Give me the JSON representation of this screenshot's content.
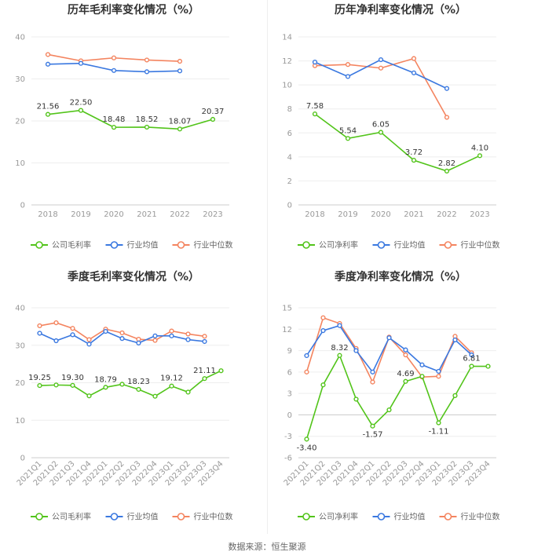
{
  "source": "数据来源：恒生聚源",
  "colors": {
    "company": "#52c41a",
    "industry_avg": "#3a78e0",
    "industry_median": "#f4845f"
  },
  "chart_data": [
    {
      "id": "annual_gross",
      "type": "line",
      "title": "历年毛利率变化情况（%）",
      "categories": [
        "2018",
        "2019",
        "2020",
        "2021",
        "2022",
        "2023"
      ],
      "ylim": [
        0,
        40
      ],
      "yticks": [
        0,
        10,
        20,
        30,
        40
      ],
      "grid": true,
      "legend_position": "bottom",
      "series": [
        {
          "name": "公司毛利率",
          "key": "company",
          "values": [
            21.56,
            22.5,
            18.48,
            18.52,
            18.07,
            20.37
          ],
          "labels": [
            "21.56",
            "22.50",
            "18.48",
            "18.52",
            "18.07",
            "20.37"
          ]
        },
        {
          "name": "行业均值",
          "key": "industry_avg",
          "values": [
            33.5,
            33.7,
            32.0,
            31.7,
            31.9,
            null
          ]
        },
        {
          "name": "行业中位数",
          "key": "industry_median",
          "values": [
            35.8,
            34.3,
            35.0,
            34.5,
            34.2,
            null
          ]
        }
      ]
    },
    {
      "id": "annual_net",
      "type": "line",
      "title": "历年净利率变化情况（%）",
      "categories": [
        "2018",
        "2019",
        "2020",
        "2021",
        "2022",
        "2023"
      ],
      "ylim": [
        0,
        14
      ],
      "yticks": [
        0,
        2,
        4,
        6,
        8,
        10,
        12,
        14
      ],
      "grid": true,
      "legend_position": "bottom",
      "series": [
        {
          "name": "公司净利率",
          "key": "company",
          "values": [
            7.58,
            5.54,
            6.05,
            3.72,
            2.82,
            4.1
          ],
          "labels": [
            "7.58",
            "5.54",
            "6.05",
            "3.72",
            "2.82",
            "4.10"
          ]
        },
        {
          "name": "行业均值",
          "key": "industry_avg",
          "values": [
            11.9,
            10.7,
            12.1,
            11.0,
            9.7,
            null
          ]
        },
        {
          "name": "行业中位数",
          "key": "industry_median",
          "values": [
            11.6,
            11.7,
            11.4,
            12.2,
            7.3,
            null
          ]
        }
      ]
    },
    {
      "id": "quarterly_gross",
      "type": "line",
      "title": "季度毛利率变化情况（%）",
      "categories": [
        "2021Q1",
        "2021Q2",
        "2021Q3",
        "2021Q4",
        "2022Q1",
        "2022Q2",
        "2022Q3",
        "2022Q4",
        "2023Q1",
        "2023Q2",
        "2023Q3",
        "2023Q4"
      ],
      "ylim": [
        0,
        40
      ],
      "yticks": [
        0,
        10,
        20,
        30,
        40
      ],
      "grid": true,
      "legend_position": "bottom",
      "series": [
        {
          "name": "公司毛利率",
          "key": "company",
          "values": [
            19.25,
            19.4,
            19.3,
            16.5,
            18.79,
            19.6,
            18.23,
            16.4,
            19.12,
            17.5,
            21.11,
            23.2
          ],
          "labels": [
            "19.25",
            "",
            "19.30",
            "",
            "18.79",
            "",
            "18.23",
            "",
            "19.12",
            "",
            "21.11",
            ""
          ]
        },
        {
          "name": "行业均值",
          "key": "industry_avg",
          "values": [
            33.2,
            31.2,
            32.8,
            30.3,
            33.7,
            31.8,
            30.6,
            32.5,
            32.5,
            31.5,
            31.0,
            null
          ]
        },
        {
          "name": "行业中位数",
          "key": "industry_median",
          "values": [
            35.2,
            36.0,
            34.5,
            31.5,
            34.3,
            33.3,
            31.6,
            31.3,
            33.8,
            33.0,
            32.4,
            null
          ]
        }
      ]
    },
    {
      "id": "quarterly_net",
      "type": "line",
      "title": "季度净利率变化情况（%）",
      "categories": [
        "2021Q1",
        "2021Q2",
        "2021Q3",
        "2021Q4",
        "2022Q1",
        "2022Q2",
        "2022Q3",
        "2022Q4",
        "2023Q1",
        "2023Q2",
        "2023Q3",
        "2023Q4"
      ],
      "ylim": [
        -6,
        15
      ],
      "yticks": [
        -6,
        -3,
        0,
        3,
        6,
        9,
        12,
        15
      ],
      "grid": true,
      "legend_position": "bottom",
      "series": [
        {
          "name": "公司净利率",
          "key": "company",
          "values": [
            -3.4,
            4.2,
            8.32,
            2.2,
            -1.57,
            0.7,
            4.69,
            5.4,
            -1.11,
            2.7,
            6.81,
            6.8
          ],
          "labels": [
            "-3.40",
            "",
            "8.32",
            "",
            "-1.57",
            "",
            "4.69",
            "",
            "-1.11",
            "",
            "6.81",
            ""
          ]
        },
        {
          "name": "行业均值",
          "key": "industry_avg",
          "values": [
            8.3,
            11.8,
            12.5,
            9.0,
            6.0,
            10.8,
            9.1,
            7.0,
            6.1,
            10.5,
            8.4,
            null
          ]
        },
        {
          "name": "行业中位数",
          "key": "industry_median",
          "values": [
            6.0,
            13.6,
            12.8,
            9.3,
            4.6,
            10.9,
            8.4,
            5.3,
            5.4,
            11.0,
            8.7,
            null
          ]
        }
      ]
    }
  ]
}
